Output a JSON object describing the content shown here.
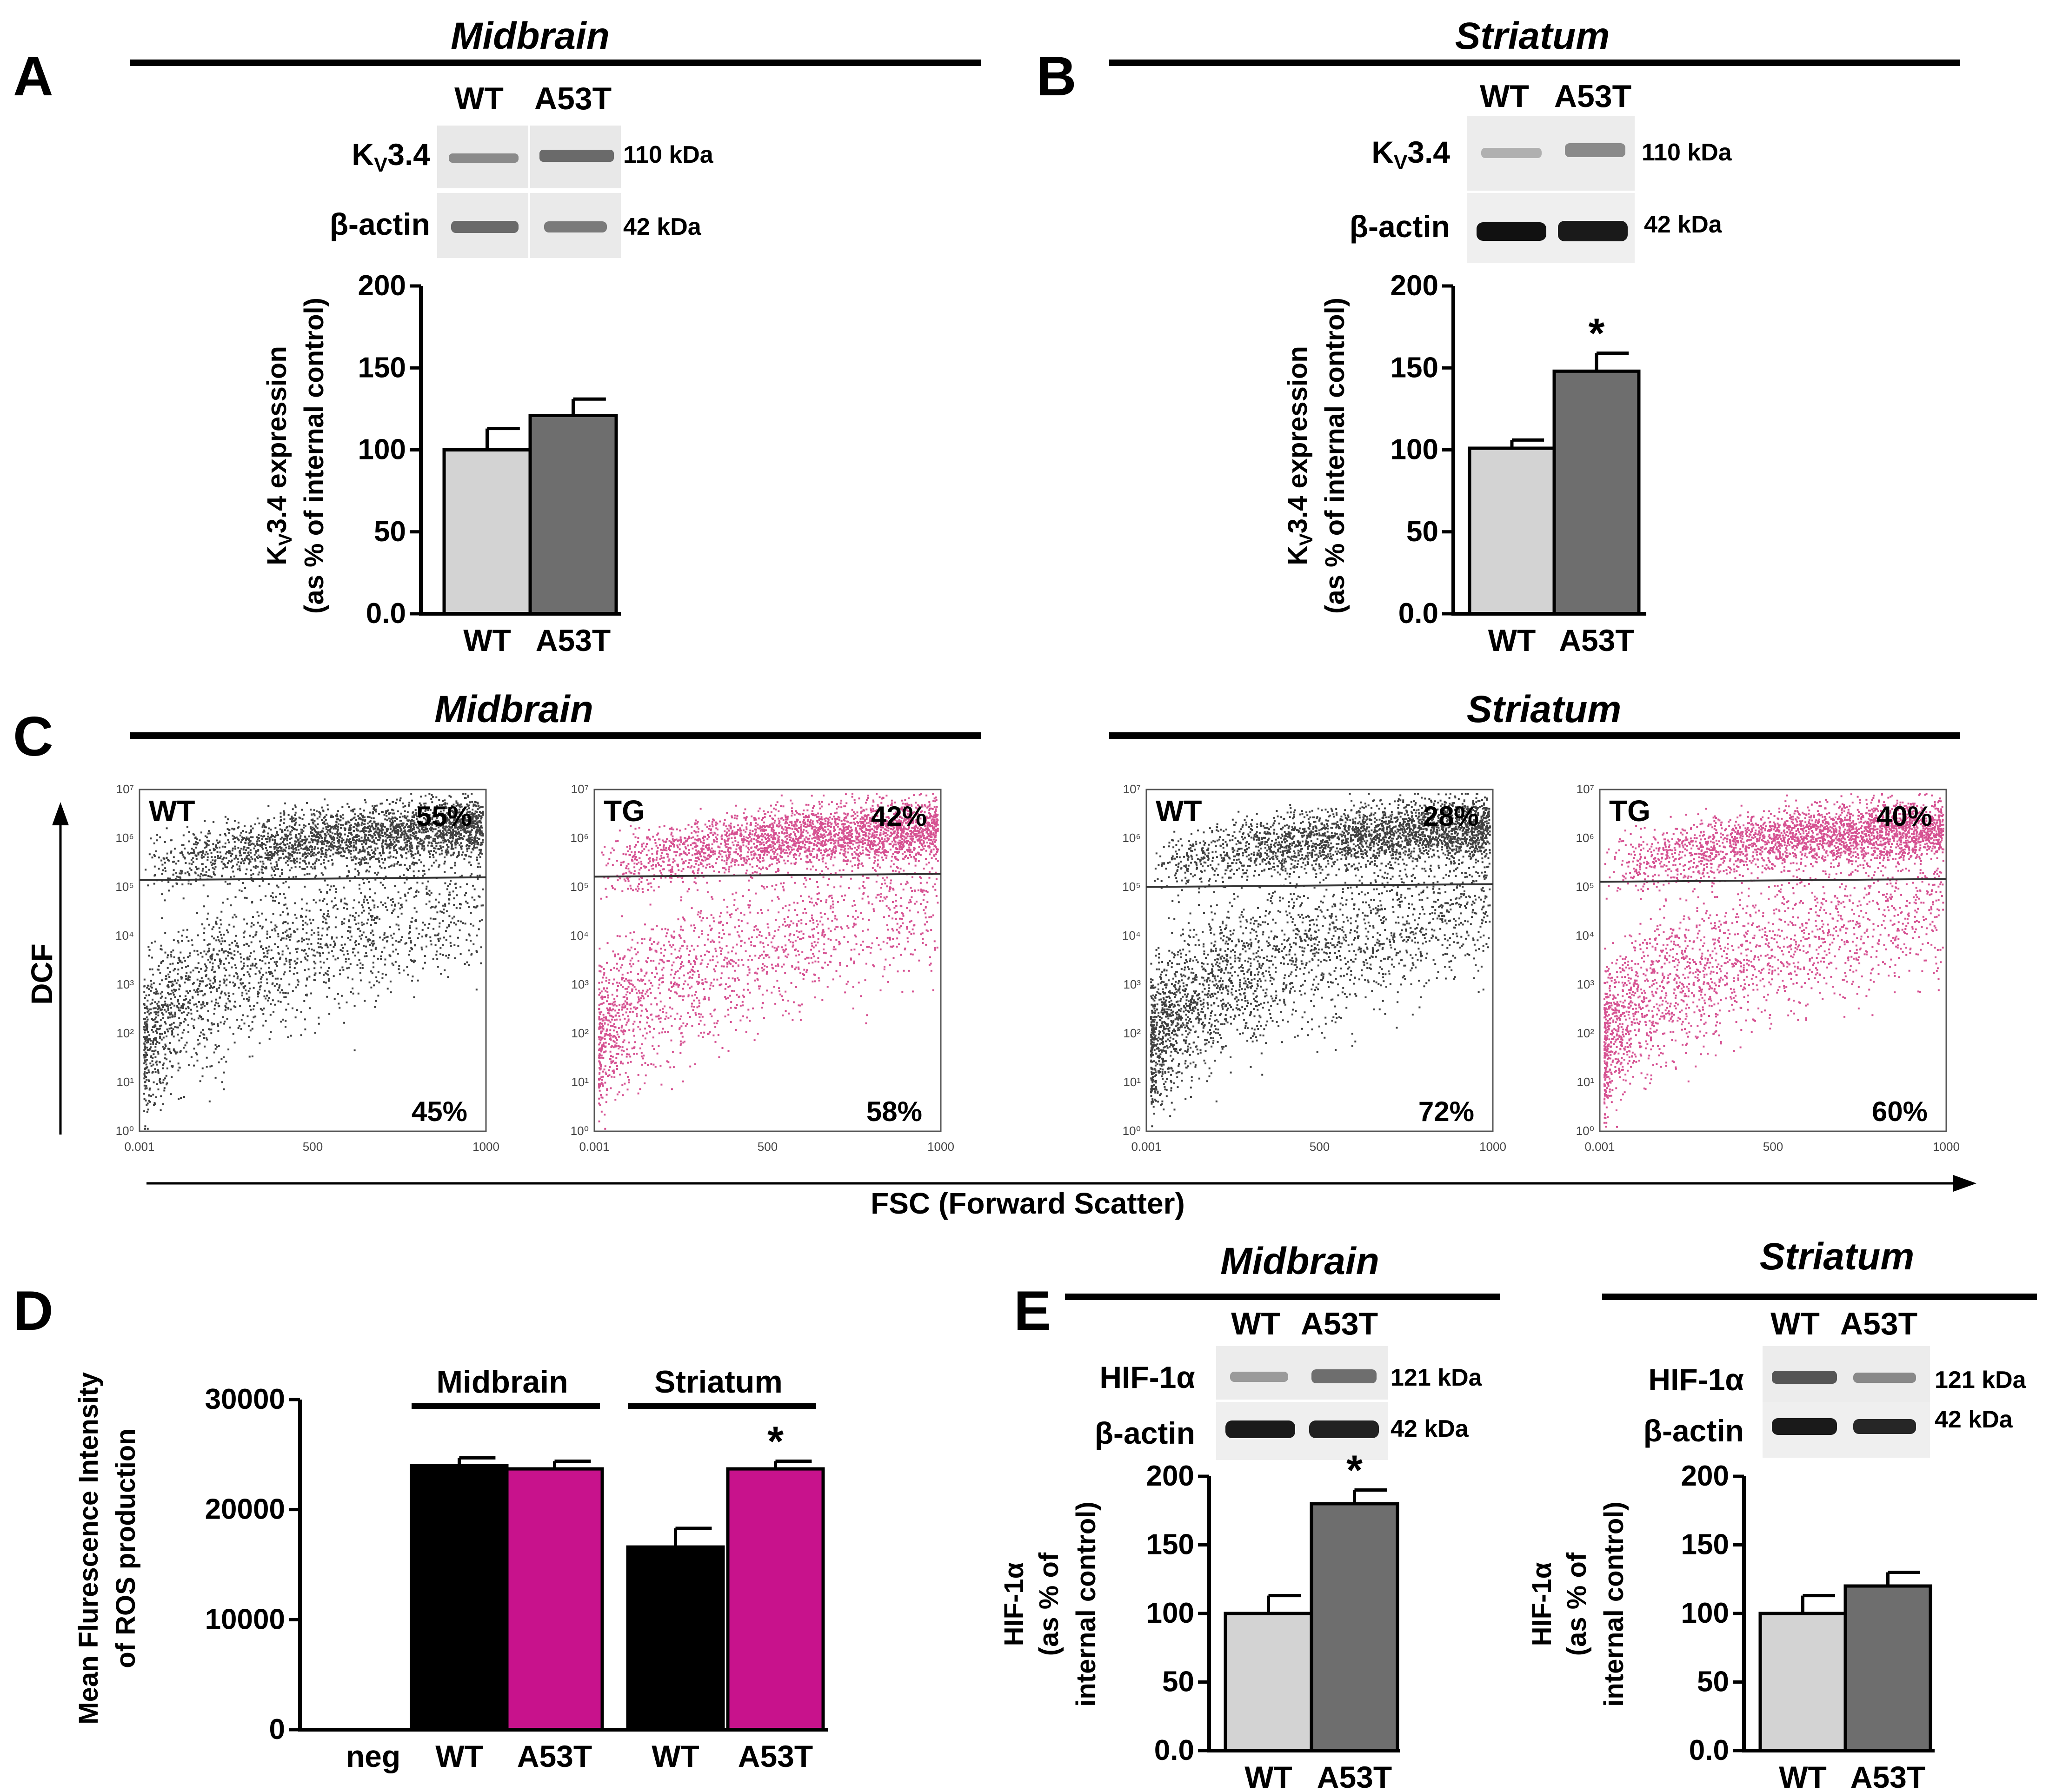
{
  "colors": {
    "wt_bar": "#d3d3d3",
    "a53t_bar": "#6e6e6e",
    "tg_magenta": "#c8186e",
    "black": "#000000",
    "bar_magenta": "#c8128c"
  },
  "panels": {
    "A": {
      "letter": "A",
      "region": "Midbrain",
      "lanes": [
        "WT",
        "A53T"
      ],
      "blots": [
        {
          "protein_main": "K",
          "protein_sub": "V",
          "protein_rest": "3.4",
          "kda": "110 kDa"
        },
        {
          "protein": "β-actin",
          "kda": "42 kDa"
        }
      ],
      "ylabel_line1_pre": "K",
      "ylabel_line1_sub": "V",
      "ylabel_line1_post": "3.4 expression",
      "ylabel_line2": "(as % of internal control)"
    },
    "B": {
      "letter": "B",
      "region": "Striatum",
      "lanes": [
        "WT",
        "A53T"
      ],
      "blots": [
        {
          "protein_main": "K",
          "protein_sub": "V",
          "protein_rest": "3.4",
          "kda": "110 kDa"
        },
        {
          "protein": "β-actin",
          "kda": "42 kDa"
        }
      ],
      "ylabel_line1_pre": "K",
      "ylabel_line1_sub": "V",
      "ylabel_line1_post": "3.4 expression",
      "ylabel_line2": "(as % of internal control)"
    },
    "C": {
      "letter": "C",
      "regions": [
        "Midbrain",
        "Striatum"
      ],
      "yaxis_label": "DCF",
      "xaxis_label": "FSC (Forward  Scatter)",
      "y_ticks": [
        "10⁷",
        "10⁶",
        "10⁵",
        "10⁴",
        "10³",
        "10²",
        "10¹",
        "10⁰"
      ],
      "x_ticks": [
        "0.001",
        "500",
        "1000"
      ],
      "plots": [
        {
          "name": "WT",
          "top_pct": "55%",
          "bottom_pct": "45%"
        },
        {
          "name": "TG",
          "top_pct": "42%",
          "bottom_pct": "58%"
        },
        {
          "name": "WT",
          "top_pct": "28%",
          "bottom_pct": "72%"
        },
        {
          "name": "TG",
          "top_pct": "40%",
          "bottom_pct": "60%"
        }
      ]
    },
    "D": {
      "letter": "D",
      "group_labels": [
        "Midbrain",
        "Striatum"
      ],
      "ylabel_line1": "Mean Flurescence Intensity",
      "ylabel_line2": "of ROS production"
    },
    "E": {
      "letter": "E",
      "regions": [
        "Midbrain",
        "Striatum"
      ],
      "lanes": [
        "WT",
        "A53T"
      ],
      "blots": [
        {
          "protein": "HIF-1α",
          "kda": "121 kDa"
        },
        {
          "protein": "β-actin",
          "kda": "42 kDa"
        }
      ],
      "ylabel_line1": "HIF-1α",
      "ylabel_line2": "(as % of",
      "ylabel_line3": "internal control)"
    }
  },
  "chart_data": [
    {
      "id": "A",
      "type": "bar",
      "title": "Midbrain",
      "categories": [
        "WT",
        "A53T"
      ],
      "values": [
        100,
        121
      ],
      "errors": [
        13,
        10
      ],
      "ylim": [
        0,
        200
      ],
      "yticks": [
        "0.0",
        "50",
        "100",
        "150",
        "200"
      ],
      "significance": [
        "",
        ""
      ],
      "ylabel": "KV3.4 expression (as % of internal control)"
    },
    {
      "id": "B",
      "type": "bar",
      "title": "Striatum",
      "categories": [
        "WT",
        "A53T"
      ],
      "values": [
        101,
        148
      ],
      "errors": [
        5,
        11
      ],
      "ylim": [
        0,
        200
      ],
      "yticks": [
        "0.0",
        "50",
        "100",
        "150",
        "200"
      ],
      "significance": [
        "",
        "*"
      ],
      "ylabel": "KV3.4 expression (as % of internal control)"
    },
    {
      "id": "D",
      "type": "bar",
      "title": "",
      "categories": [
        "neg",
        "WT",
        "A53T",
        "WT",
        "A53T"
      ],
      "values": [
        0,
        24000,
        23700,
        16600,
        23700
      ],
      "errors": [
        0,
        700,
        700,
        1700,
        700
      ],
      "ylim": [
        0,
        30000
      ],
      "yticks": [
        "0",
        "10000",
        "20000",
        "30000"
      ],
      "significance": [
        "",
        "",
        "",
        "",
        "*"
      ],
      "ylabel": "Mean Flurescence Intensity of ROS production"
    },
    {
      "id": "E-midbrain",
      "type": "bar",
      "title": "Midbrain",
      "categories": [
        "WT",
        "A53T"
      ],
      "values": [
        100,
        180
      ],
      "errors": [
        13,
        10
      ],
      "ylim": [
        0,
        200
      ],
      "yticks": [
        "0.0",
        "50",
        "100",
        "150",
        "200"
      ],
      "significance": [
        "",
        "*"
      ],
      "ylabel": "HIF-1α (as % of internal control)"
    },
    {
      "id": "E-striatum",
      "type": "bar",
      "title": "Striatum",
      "categories": [
        "WT",
        "A53T"
      ],
      "values": [
        100,
        120
      ],
      "errors": [
        13,
        10
      ],
      "ylim": [
        0,
        200
      ],
      "yticks": [
        "0.0",
        "50",
        "100",
        "150",
        "200"
      ],
      "significance": [
        "",
        ""
      ],
      "ylabel": "HIF-1α (as % of internal control)"
    }
  ]
}
